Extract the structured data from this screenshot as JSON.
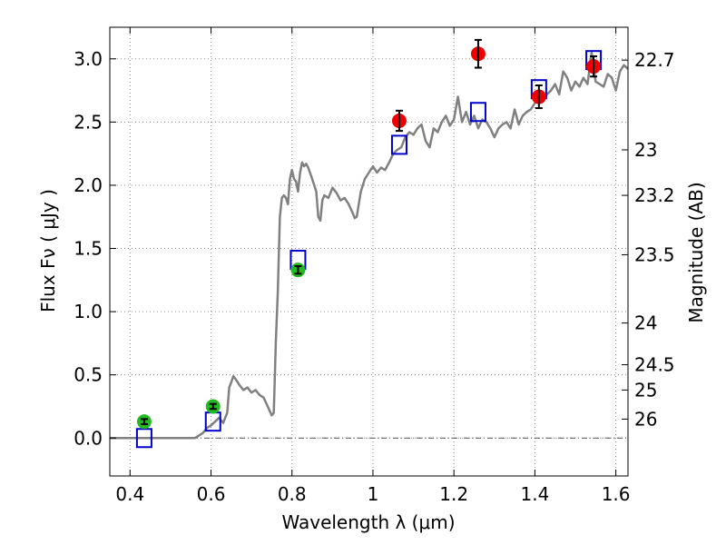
{
  "chart_data": {
    "type": "scatter",
    "title": "",
    "xlabel": "Wavelength  λ (μm)",
    "ylabel": "Flux  Fν  ( μJy )",
    "y2label": "Magnitude (AB)",
    "xlim": [
      0.35,
      1.63
    ],
    "ylim": [
      -0.3,
      3.25
    ],
    "grid": true,
    "x_ticks": [
      0.4,
      0.6,
      0.8,
      1.0,
      1.2,
      1.4,
      1.6
    ],
    "x_tick_labels": [
      "0.4",
      "0.6",
      "0.8",
      "1",
      "1.2",
      "1.4",
      "1.6"
    ],
    "y_ticks": [
      0.0,
      0.5,
      1.0,
      1.5,
      2.0,
      2.5,
      3.0
    ],
    "y_tick_labels": [
      "0.0",
      "0.5",
      "1.0",
      "1.5",
      "2.0",
      "2.5",
      "3.0"
    ],
    "y2_ticks": [
      {
        "label": "22.7",
        "flux": 2.99
      },
      {
        "label": "23",
        "flux": 2.28
      },
      {
        "label": "23.2",
        "flux": 1.92
      },
      {
        "label": "23.5",
        "flux": 1.45
      },
      {
        "label": "24",
        "flux": 0.91
      },
      {
        "label": "24.5",
        "flux": 0.58
      },
      {
        "label": "25",
        "flux": 0.38
      },
      {
        "label": "26",
        "flux": 0.15
      }
    ],
    "colors": {
      "model": "#808080",
      "model_photometry": "#0000cc",
      "optical": "#22bb22",
      "nir": "#ee0000",
      "zero_line": "#555555",
      "grid": "#888888"
    },
    "series": [
      {
        "kind": "line",
        "x": [
          0.35,
          0.56,
          0.58,
          0.59,
          0.6,
          0.61,
          0.62,
          0.63,
          0.64,
          0.645,
          0.65,
          0.655,
          0.66,
          0.67,
          0.68,
          0.69,
          0.7,
          0.71,
          0.72,
          0.73,
          0.74,
          0.75,
          0.755,
          0.76,
          0.765,
          0.77,
          0.775,
          0.78,
          0.785,
          0.79,
          0.795,
          0.8,
          0.805,
          0.81,
          0.815,
          0.82,
          0.825,
          0.83,
          0.835,
          0.84,
          0.85,
          0.86,
          0.865,
          0.87,
          0.875,
          0.88,
          0.89,
          0.9,
          0.91,
          0.92,
          0.93,
          0.94,
          0.95,
          0.955,
          0.96,
          0.97,
          0.98,
          0.99,
          1.0,
          1.01,
          1.02,
          1.03,
          1.04,
          1.05,
          1.06,
          1.07,
          1.08,
          1.09,
          1.1,
          1.11,
          1.12,
          1.13,
          1.14,
          1.15,
          1.16,
          1.17,
          1.18,
          1.19,
          1.2,
          1.21,
          1.22,
          1.23,
          1.24,
          1.25,
          1.26,
          1.27,
          1.28,
          1.29,
          1.3,
          1.31,
          1.32,
          1.33,
          1.34,
          1.35,
          1.36,
          1.37,
          1.38,
          1.39,
          1.4,
          1.41,
          1.42,
          1.43,
          1.44,
          1.45,
          1.46,
          1.47,
          1.48,
          1.49,
          1.5,
          1.51,
          1.52,
          1.53,
          1.54,
          1.55,
          1.56,
          1.57,
          1.58,
          1.59,
          1.6,
          1.61,
          1.62,
          1.63
        ],
        "y": [
          0.0,
          0.0,
          0.04,
          0.08,
          0.1,
          0.13,
          0.16,
          0.12,
          0.2,
          0.4,
          0.44,
          0.49,
          0.47,
          0.42,
          0.38,
          0.4,
          0.36,
          0.38,
          0.34,
          0.32,
          0.25,
          0.18,
          0.2,
          0.75,
          1.15,
          1.75,
          1.9,
          1.92,
          1.9,
          1.85,
          2.05,
          2.12,
          2.05,
          2.03,
          1.95,
          2.1,
          2.18,
          2.15,
          2.17,
          2.14,
          2.05,
          1.95,
          1.75,
          1.72,
          1.88,
          1.92,
          1.9,
          1.98,
          1.94,
          1.88,
          1.9,
          1.85,
          1.78,
          1.74,
          1.75,
          1.95,
          2.05,
          2.1,
          2.15,
          2.1,
          2.14,
          2.12,
          2.18,
          2.25,
          2.28,
          2.3,
          2.38,
          2.42,
          2.4,
          2.45,
          2.48,
          2.35,
          2.3,
          2.45,
          2.42,
          2.5,
          2.55,
          2.47,
          2.52,
          2.7,
          2.5,
          2.58,
          2.48,
          2.55,
          2.45,
          2.52,
          2.5,
          2.45,
          2.38,
          2.45,
          2.48,
          2.5,
          2.45,
          2.6,
          2.48,
          2.55,
          2.58,
          2.6,
          2.65,
          2.7,
          2.68,
          2.72,
          2.75,
          2.8,
          2.72,
          2.9,
          2.85,
          2.75,
          2.82,
          2.78,
          2.85,
          2.8,
          3.05,
          2.82,
          2.8,
          2.78,
          2.88,
          2.85,
          2.75,
          2.9,
          2.95,
          2.92
        ]
      },
      {
        "kind": "model_photometry",
        "x": [
          0.435,
          0.605,
          0.815,
          1.065,
          1.26,
          1.41,
          1.545
        ],
        "y": [
          0.0,
          0.13,
          1.41,
          2.32,
          2.58,
          2.76,
          2.99
        ]
      },
      {
        "kind": "optical",
        "x": [
          0.435,
          0.605,
          0.815
        ],
        "y": [
          0.13,
          0.25,
          1.33
        ],
        "err": [
          0.02,
          0.02,
          0.03
        ]
      },
      {
        "kind": "nir",
        "x": [
          1.065,
          1.26,
          1.41,
          1.545
        ],
        "y": [
          2.51,
          3.04,
          2.7,
          2.94
        ],
        "err": [
          0.08,
          0.11,
          0.09,
          0.08
        ]
      }
    ]
  }
}
